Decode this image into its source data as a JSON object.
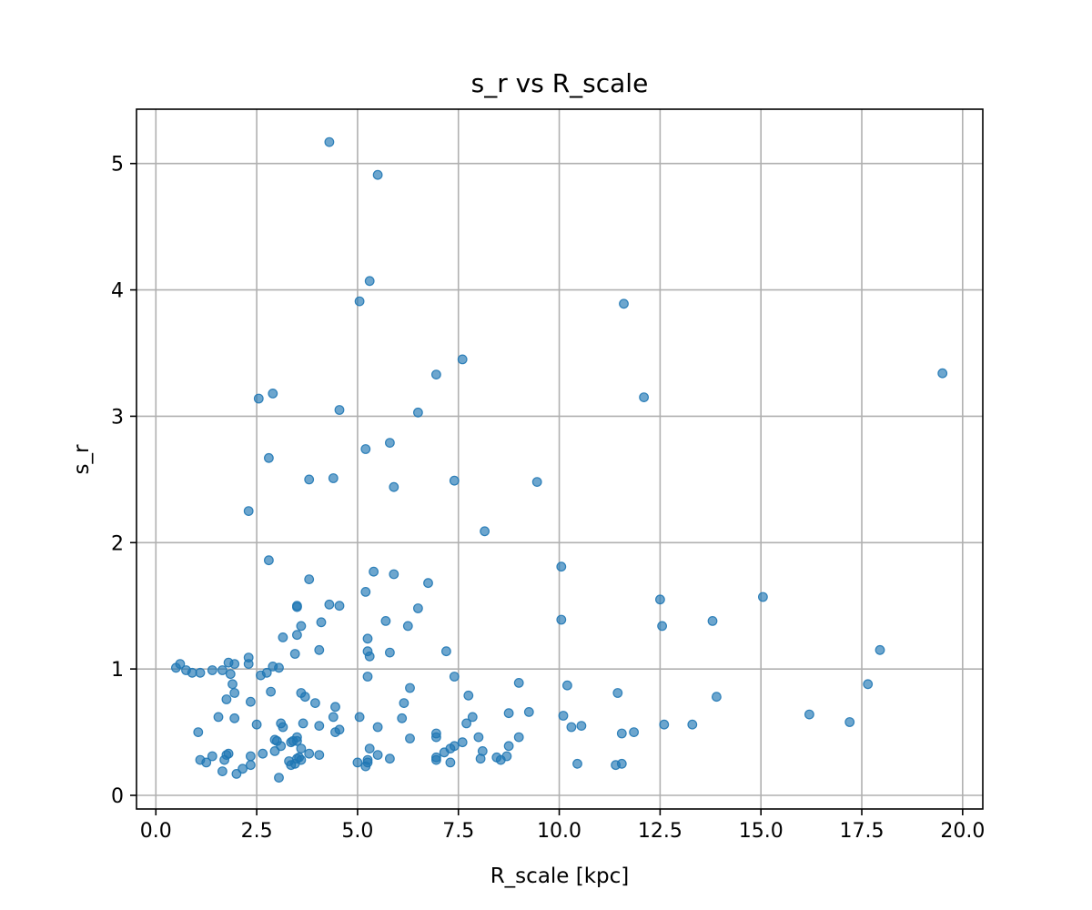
{
  "chart_data": {
    "type": "scatter",
    "title": "s_r vs R_scale",
    "xlabel": "R_scale [kpc]",
    "ylabel": "s_r",
    "xlim": [
      -0.48,
      20.5
    ],
    "ylim": [
      -0.108,
      5.43
    ],
    "xticks": [
      0.0,
      2.5,
      5.0,
      7.5,
      10.0,
      12.5,
      15.0,
      17.5,
      20.0
    ],
    "xtick_labels": [
      "0.0",
      "2.5",
      "5.0",
      "7.5",
      "10.0",
      "12.5",
      "15.0",
      "17.5",
      "20.0"
    ],
    "yticks": [
      0,
      1,
      2,
      3,
      4,
      5
    ],
    "ytick_labels": [
      "0",
      "1",
      "2",
      "3",
      "4",
      "5"
    ],
    "grid": true,
    "legend": "none",
    "marker_color": "#1f77b4",
    "marker_alpha": 0.65,
    "points": [
      [
        0.5,
        1.01
      ],
      [
        0.6,
        1.04
      ],
      [
        0.75,
        0.99
      ],
      [
        0.9,
        0.97
      ],
      [
        1.1,
        0.97
      ],
      [
        1.4,
        0.99
      ],
      [
        1.65,
        0.99
      ],
      [
        1.8,
        1.05
      ],
      [
        1.95,
        1.04
      ],
      [
        2.3,
        1.09
      ],
      [
        2.3,
        1.04
      ],
      [
        2.6,
        0.95
      ],
      [
        2.75,
        0.97
      ],
      [
        2.9,
        1.02
      ],
      [
        3.05,
        1.01
      ],
      [
        1.85,
        0.96
      ],
      [
        1.9,
        0.88
      ],
      [
        1.95,
        0.81
      ],
      [
        1.75,
        0.76
      ],
      [
        2.35,
        0.74
      ],
      [
        2.85,
        0.82
      ],
      [
        1.05,
        0.5
      ],
      [
        1.55,
        0.62
      ],
      [
        1.95,
        0.61
      ],
      [
        2.5,
        0.56
      ],
      [
        1.1,
        0.28
      ],
      [
        1.25,
        0.26
      ],
      [
        1.4,
        0.31
      ],
      [
        1.65,
        0.19
      ],
      [
        1.7,
        0.28
      ],
      [
        1.75,
        0.32
      ],
      [
        1.8,
        0.33
      ],
      [
        2.0,
        0.17
      ],
      [
        2.15,
        0.21
      ],
      [
        2.35,
        0.24
      ],
      [
        2.35,
        0.31
      ],
      [
        2.65,
        0.33
      ],
      [
        2.95,
        0.35
      ],
      [
        3.0,
        0.43
      ],
      [
        2.95,
        0.44
      ],
      [
        3.05,
        0.14
      ],
      [
        3.1,
        0.39
      ],
      [
        3.1,
        0.57
      ],
      [
        3.15,
        0.54
      ],
      [
        3.3,
        0.27
      ],
      [
        3.35,
        0.24
      ],
      [
        3.35,
        0.42
      ],
      [
        3.4,
        0.43
      ],
      [
        3.45,
        0.25
      ],
      [
        3.5,
        0.29
      ],
      [
        3.5,
        0.43
      ],
      [
        3.5,
        0.46
      ],
      [
        3.55,
        0.3
      ],
      [
        3.6,
        0.28
      ],
      [
        3.6,
        0.37
      ],
      [
        3.65,
        0.57
      ],
      [
        3.6,
        0.81
      ],
      [
        3.7,
        0.78
      ],
      [
        3.8,
        0.33
      ],
      [
        3.95,
        0.73
      ],
      [
        4.05,
        0.32
      ],
      [
        4.05,
        0.55
      ],
      [
        4.4,
        0.62
      ],
      [
        4.45,
        0.5
      ],
      [
        4.45,
        0.7
      ],
      [
        4.55,
        0.52
      ],
      [
        3.45,
        1.12
      ],
      [
        3.5,
        1.27
      ],
      [
        3.5,
        1.49
      ],
      [
        3.5,
        1.5
      ],
      [
        3.6,
        1.34
      ],
      [
        3.15,
        1.25
      ],
      [
        4.05,
        1.15
      ],
      [
        4.1,
        1.37
      ],
      [
        4.3,
        1.51
      ],
      [
        4.55,
        1.5
      ],
      [
        3.8,
        1.71
      ],
      [
        2.8,
        1.86
      ],
      [
        2.3,
        2.25
      ],
      [
        2.8,
        2.67
      ],
      [
        3.8,
        2.5
      ],
      [
        2.55,
        3.14
      ],
      [
        2.9,
        3.18
      ],
      [
        4.3,
        5.17
      ],
      [
        4.4,
        2.51
      ],
      [
        4.55,
        3.05
      ],
      [
        5.05,
        3.91
      ],
      [
        5.3,
        4.07
      ],
      [
        5.5,
        4.91
      ],
      [
        5.2,
        2.74
      ],
      [
        5.8,
        2.79
      ],
      [
        5.9,
        2.44
      ],
      [
        6.5,
        3.03
      ],
      [
        6.95,
        3.33
      ],
      [
        7.4,
        2.49
      ],
      [
        7.6,
        3.45
      ],
      [
        5.2,
        1.61
      ],
      [
        5.25,
        1.24
      ],
      [
        5.25,
        1.14
      ],
      [
        5.3,
        1.1
      ],
      [
        5.25,
        0.94
      ],
      [
        5.4,
        1.77
      ],
      [
        5.7,
        1.38
      ],
      [
        5.8,
        1.13
      ],
      [
        5.9,
        1.75
      ],
      [
        6.25,
        1.34
      ],
      [
        6.5,
        1.48
      ],
      [
        6.75,
        1.68
      ],
      [
        7.2,
        1.14
      ],
      [
        7.4,
        0.94
      ],
      [
        5.0,
        0.26
      ],
      [
        5.05,
        0.62
      ],
      [
        5.2,
        0.23
      ],
      [
        5.25,
        0.26
      ],
      [
        5.25,
        0.28
      ],
      [
        5.3,
        0.37
      ],
      [
        5.5,
        0.32
      ],
      [
        5.5,
        0.54
      ],
      [
        5.8,
        0.29
      ],
      [
        6.1,
        0.61
      ],
      [
        6.15,
        0.73
      ],
      [
        6.3,
        0.85
      ],
      [
        6.3,
        0.45
      ],
      [
        6.95,
        0.28
      ],
      [
        6.95,
        0.3
      ],
      [
        6.95,
        0.46
      ],
      [
        6.95,
        0.49
      ],
      [
        7.15,
        0.34
      ],
      [
        7.3,
        0.26
      ],
      [
        7.3,
        0.37
      ],
      [
        7.4,
        0.39
      ],
      [
        7.6,
        0.42
      ],
      [
        7.7,
        0.57
      ],
      [
        7.75,
        0.79
      ],
      [
        7.85,
        0.62
      ],
      [
        8.0,
        0.46
      ],
      [
        8.05,
        0.29
      ],
      [
        8.1,
        0.35
      ],
      [
        8.15,
        2.09
      ],
      [
        8.45,
        0.3
      ],
      [
        8.55,
        0.28
      ],
      [
        8.7,
        0.31
      ],
      [
        8.75,
        0.39
      ],
      [
        8.75,
        0.65
      ],
      [
        9.0,
        0.46
      ],
      [
        9.0,
        0.89
      ],
      [
        9.25,
        0.66
      ],
      [
        9.45,
        2.48
      ],
      [
        10.05,
        1.81
      ],
      [
        10.05,
        1.39
      ],
      [
        10.1,
        0.63
      ],
      [
        10.2,
        0.87
      ],
      [
        10.3,
        0.54
      ],
      [
        10.45,
        0.25
      ],
      [
        10.55,
        0.55
      ],
      [
        11.4,
        0.24
      ],
      [
        11.45,
        0.81
      ],
      [
        11.55,
        0.49
      ],
      [
        11.55,
        0.25
      ],
      [
        11.6,
        3.89
      ],
      [
        11.85,
        0.5
      ],
      [
        12.1,
        3.15
      ],
      [
        12.5,
        1.55
      ],
      [
        12.55,
        1.34
      ],
      [
        12.6,
        0.56
      ],
      [
        13.3,
        0.56
      ],
      [
        13.8,
        1.38
      ],
      [
        13.9,
        0.78
      ],
      [
        15.05,
        1.57
      ],
      [
        16.2,
        0.64
      ],
      [
        17.2,
        0.58
      ],
      [
        17.65,
        0.88
      ],
      [
        17.95,
        1.15
      ],
      [
        19.5,
        3.34
      ]
    ]
  }
}
